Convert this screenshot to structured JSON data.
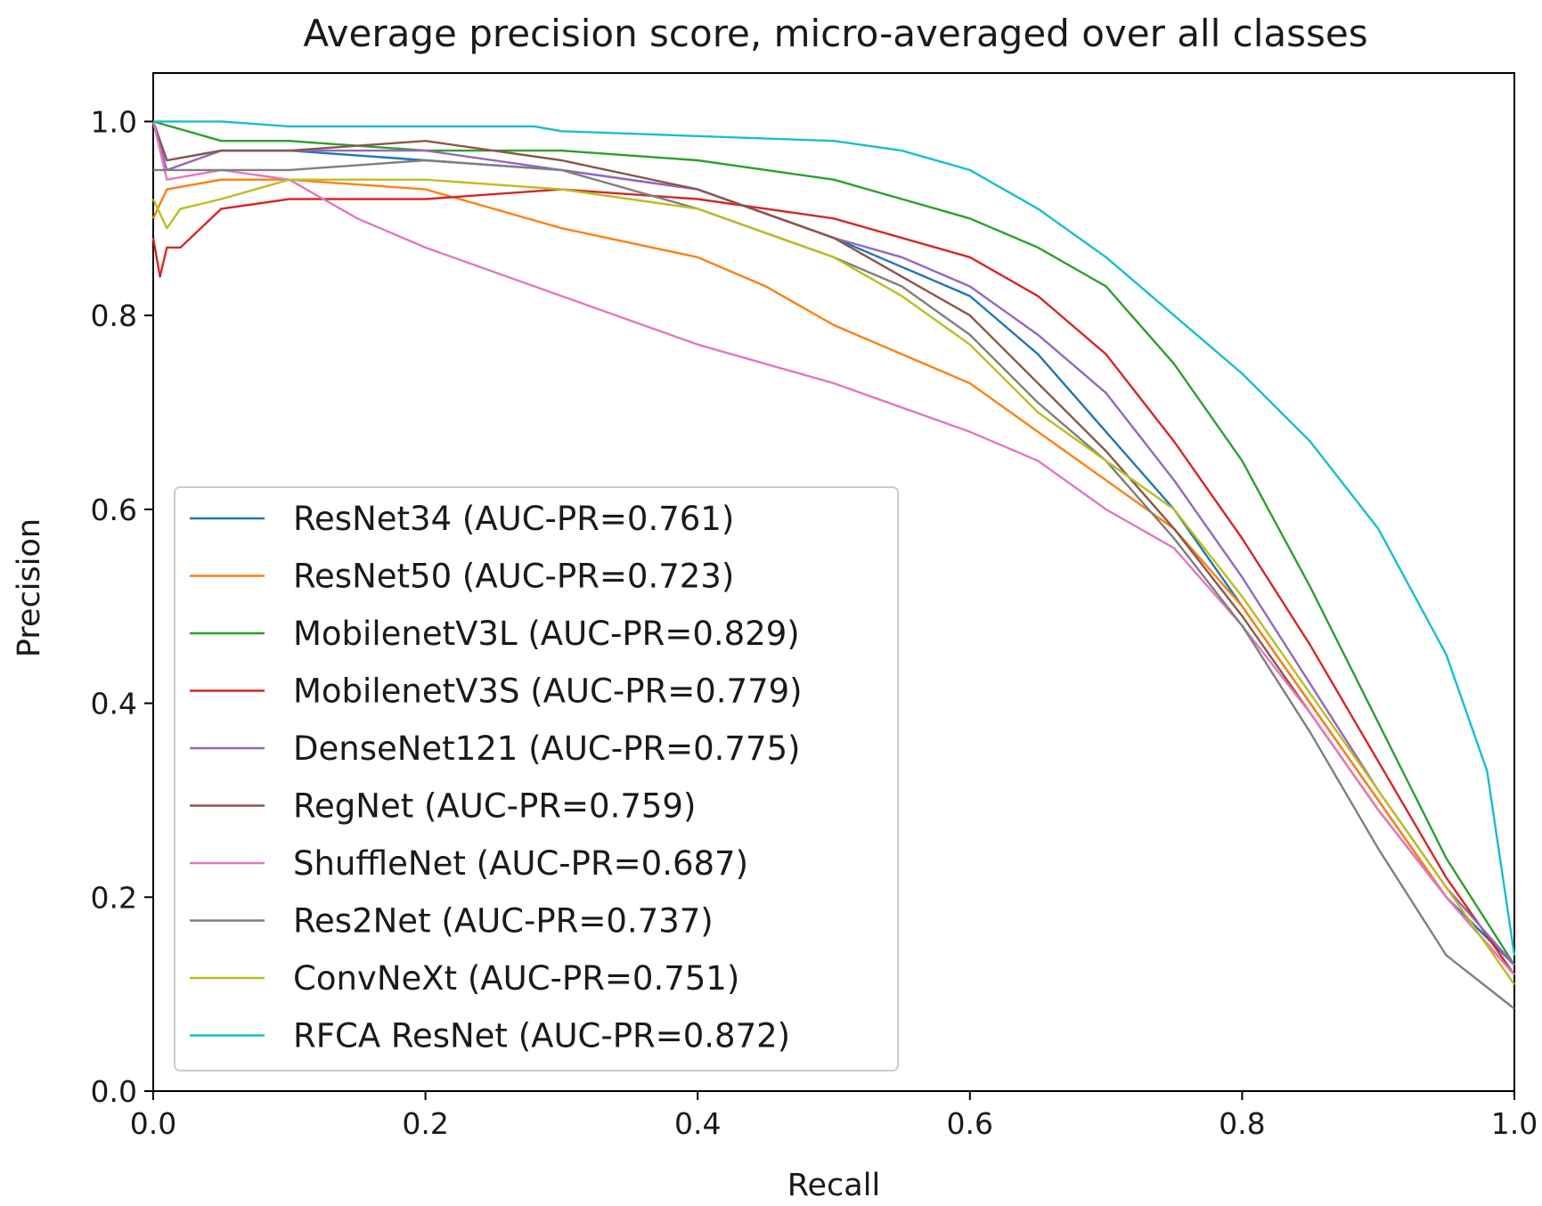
{
  "chart_data": {
    "type": "line",
    "title": "Average precision score, micro-averaged over all classes",
    "xlabel": "Recall",
    "ylabel": "Precision",
    "xlim": [
      0.0,
      1.0
    ],
    "ylim": [
      0.0,
      1.05
    ],
    "xticks": [
      0.0,
      0.2,
      0.4,
      0.6,
      0.8,
      1.0
    ],
    "xtick_labels": [
      "0.0",
      "0.2",
      "0.4",
      "0.6",
      "0.8",
      "1.0"
    ],
    "yticks": [
      0.0,
      0.2,
      0.4,
      0.6,
      0.8,
      1.0
    ],
    "ytick_labels": [
      "0.0",
      "0.2",
      "0.4",
      "0.6",
      "0.8",
      "1.0"
    ],
    "grid": false,
    "legend_position": "lower-left",
    "series": [
      {
        "name": "ResNet34 (AUC-PR=0.761)",
        "color": "#1f77b4",
        "x": [
          0,
          0.01,
          0.05,
          0.1,
          0.2,
          0.3,
          0.4,
          0.5,
          0.55,
          0.6,
          0.65,
          0.7,
          0.75,
          0.8,
          0.85,
          0.9,
          0.95,
          1.0
        ],
        "y": [
          1.0,
          0.96,
          0.97,
          0.97,
          0.96,
          0.95,
          0.93,
          0.88,
          0.85,
          0.82,
          0.76,
          0.68,
          0.6,
          0.5,
          0.4,
          0.3,
          0.2,
          0.13
        ]
      },
      {
        "name": "ResNet50 (AUC-PR=0.723)",
        "color": "#ff7f0e",
        "x": [
          0,
          0.01,
          0.05,
          0.1,
          0.2,
          0.25,
          0.3,
          0.4,
          0.45,
          0.5,
          0.55,
          0.6,
          0.65,
          0.7,
          0.75,
          0.8,
          0.85,
          0.9,
          0.95,
          1.0
        ],
        "y": [
          0.9,
          0.93,
          0.94,
          0.94,
          0.93,
          0.91,
          0.89,
          0.86,
          0.83,
          0.79,
          0.76,
          0.73,
          0.68,
          0.63,
          0.58,
          0.5,
          0.4,
          0.3,
          0.2,
          0.12
        ]
      },
      {
        "name": "MobilenetV3L (AUC-PR=0.829)",
        "color": "#2ca02c",
        "x": [
          0,
          0.05,
          0.1,
          0.2,
          0.3,
          0.4,
          0.5,
          0.55,
          0.6,
          0.65,
          0.7,
          0.75,
          0.8,
          0.85,
          0.9,
          0.95,
          1.0
        ],
        "y": [
          1.0,
          0.98,
          0.98,
          0.97,
          0.97,
          0.96,
          0.94,
          0.92,
          0.9,
          0.87,
          0.83,
          0.75,
          0.65,
          0.52,
          0.38,
          0.24,
          0.13
        ]
      },
      {
        "name": "MobilenetV3S (AUC-PR=0.779)",
        "color": "#d62728",
        "x": [
          0,
          0.005,
          0.01,
          0.02,
          0.05,
          0.1,
          0.2,
          0.3,
          0.4,
          0.5,
          0.6,
          0.65,
          0.7,
          0.75,
          0.8,
          0.85,
          0.9,
          0.95,
          1.0
        ],
        "y": [
          0.88,
          0.84,
          0.87,
          0.87,
          0.91,
          0.92,
          0.92,
          0.93,
          0.92,
          0.9,
          0.86,
          0.82,
          0.76,
          0.67,
          0.57,
          0.46,
          0.34,
          0.22,
          0.12
        ]
      },
      {
        "name": "DenseNet121 (AUC-PR=0.775)",
        "color": "#9467bd",
        "x": [
          0,
          0.01,
          0.05,
          0.1,
          0.2,
          0.3,
          0.4,
          0.5,
          0.55,
          0.6,
          0.65,
          0.7,
          0.75,
          0.8,
          0.85,
          0.9,
          0.95,
          1.0
        ],
        "y": [
          1.0,
          0.95,
          0.97,
          0.97,
          0.97,
          0.95,
          0.93,
          0.88,
          0.86,
          0.83,
          0.78,
          0.72,
          0.63,
          0.53,
          0.42,
          0.31,
          0.21,
          0.13
        ]
      },
      {
        "name": "RegNet (AUC-PR=0.759)",
        "color": "#8c564b",
        "x": [
          0,
          0.01,
          0.05,
          0.1,
          0.2,
          0.3,
          0.4,
          0.5,
          0.55,
          0.6,
          0.65,
          0.7,
          0.75,
          0.8,
          0.85,
          0.9,
          0.95,
          1.0
        ],
        "y": [
          1.0,
          0.96,
          0.97,
          0.97,
          0.98,
          0.96,
          0.93,
          0.88,
          0.84,
          0.8,
          0.73,
          0.66,
          0.58,
          0.49,
          0.39,
          0.29,
          0.2,
          0.12
        ]
      },
      {
        "name": "ShuffleNet (AUC-PR=0.687)",
        "color": "#e377c2",
        "x": [
          0,
          0.01,
          0.05,
          0.1,
          0.15,
          0.2,
          0.3,
          0.4,
          0.5,
          0.6,
          0.65,
          0.7,
          0.75,
          0.8,
          0.85,
          0.9,
          0.95,
          1.0
        ],
        "y": [
          1.0,
          0.94,
          0.95,
          0.94,
          0.9,
          0.87,
          0.82,
          0.77,
          0.73,
          0.68,
          0.65,
          0.6,
          0.56,
          0.48,
          0.39,
          0.29,
          0.2,
          0.12
        ]
      },
      {
        "name": "Res2Net (AUC-PR=0.737)",
        "color": "#7f7f7f",
        "x": [
          0,
          0.005,
          0.05,
          0.1,
          0.2,
          0.3,
          0.4,
          0.5,
          0.55,
          0.6,
          0.65,
          0.7,
          0.75,
          0.8,
          0.85,
          0.9,
          0.95,
          1.0
        ],
        "y": [
          0.95,
          0.95,
          0.95,
          0.95,
          0.96,
          0.95,
          0.91,
          0.86,
          0.83,
          0.78,
          0.71,
          0.65,
          0.57,
          0.48,
          0.37,
          0.25,
          0.14,
          0.085
        ]
      },
      {
        "name": "ConvNeXt (AUC-PR=0.751)",
        "color": "#bcbd22",
        "x": [
          0,
          0.01,
          0.02,
          0.05,
          0.1,
          0.2,
          0.3,
          0.4,
          0.5,
          0.55,
          0.6,
          0.65,
          0.7,
          0.75,
          0.8,
          0.85,
          0.9,
          0.95,
          1.0
        ],
        "y": [
          0.92,
          0.89,
          0.91,
          0.92,
          0.94,
          0.94,
          0.93,
          0.91,
          0.86,
          0.82,
          0.77,
          0.7,
          0.65,
          0.6,
          0.51,
          0.41,
          0.31,
          0.21,
          0.11
        ]
      },
      {
        "name": "RFCA ResNet (AUC-PR=0.872)",
        "color": "#17becf",
        "x": [
          0,
          0.04,
          0.05,
          0.1,
          0.2,
          0.28,
          0.3,
          0.4,
          0.5,
          0.55,
          0.6,
          0.65,
          0.7,
          0.75,
          0.8,
          0.85,
          0.9,
          0.95,
          0.98,
          1.0
        ],
        "y": [
          1.0,
          1.0,
          1.0,
          0.995,
          0.995,
          0.995,
          0.99,
          0.985,
          0.98,
          0.97,
          0.95,
          0.91,
          0.86,
          0.8,
          0.74,
          0.67,
          0.58,
          0.45,
          0.33,
          0.14
        ]
      }
    ]
  }
}
